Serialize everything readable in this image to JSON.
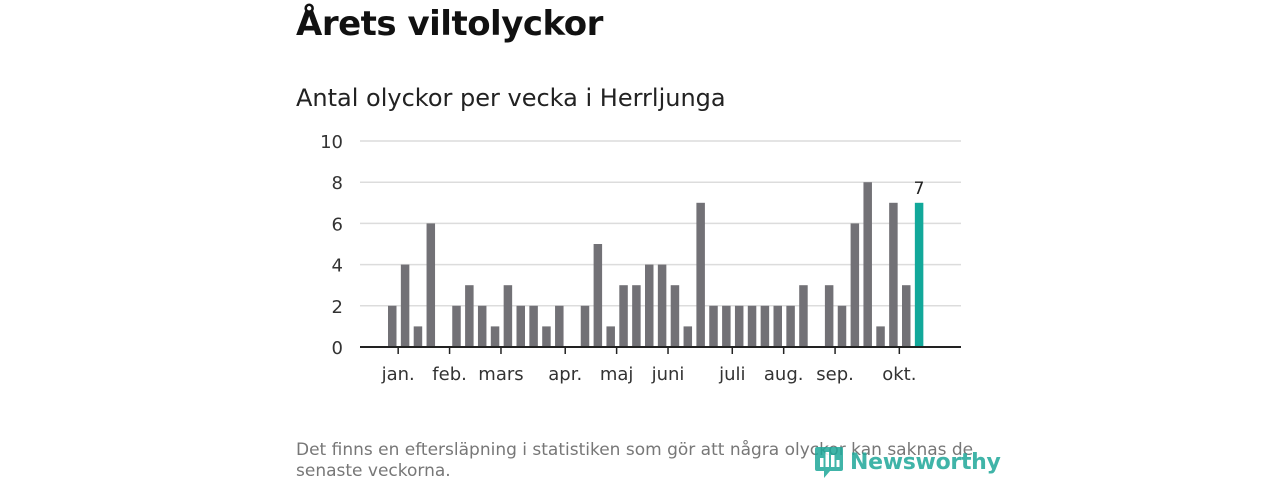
{
  "header": {
    "title": "Årets viltolyckor"
  },
  "chart_data": {
    "type": "bar",
    "title": "Antal olyckor per vecka i Herrljunga",
    "xlabel": "",
    "ylabel": "",
    "ylim": [
      0,
      10
    ],
    "yticks": [
      "0",
      "2",
      "4",
      "6",
      "8",
      "10"
    ],
    "grid": true,
    "series": [
      {
        "name": "Antal olyckor",
        "values": [
          2,
          4,
          1,
          6,
          0,
          2,
          3,
          2,
          1,
          3,
          2,
          2,
          1,
          2,
          0,
          2,
          5,
          1,
          3,
          3,
          4,
          4,
          3,
          1,
          7,
          2,
          2,
          2,
          2,
          2,
          2,
          2,
          3,
          0,
          3,
          2,
          6,
          8,
          1,
          7,
          3,
          7
        ]
      }
    ],
    "highlight": {
      "index": 41,
      "label": "7",
      "color": "#12a89a"
    },
    "bar_color": "#727176",
    "month_labels": [
      {
        "label": "jan.",
        "week": 1
      },
      {
        "label": "feb.",
        "week": 5
      },
      {
        "label": "mars",
        "week": 9
      },
      {
        "label": "apr.",
        "week": 14
      },
      {
        "label": "maj",
        "week": 18
      },
      {
        "label": "juni",
        "week": 22
      },
      {
        "label": "juli",
        "week": 27
      },
      {
        "label": "aug.",
        "week": 31
      },
      {
        "label": "sep.",
        "week": 35
      },
      {
        "label": "okt.",
        "week": 40
      }
    ]
  },
  "footnote": {
    "text": "Det finns en eftersläpning i statistiken som gör att några olyckor kan saknas de senaste veckorna."
  },
  "brand": {
    "name": "Newsworthy",
    "color": "#1fa89a"
  }
}
